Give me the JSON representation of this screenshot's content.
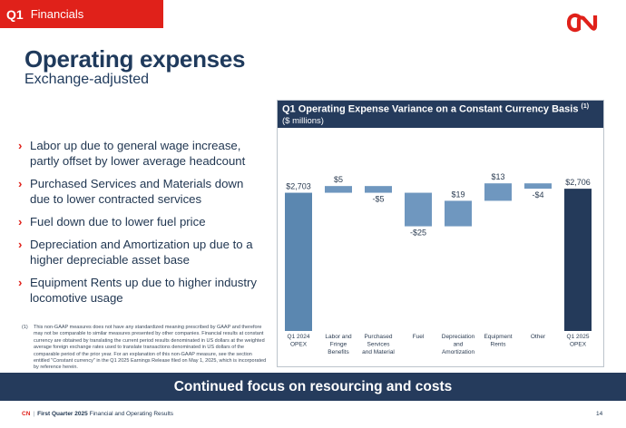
{
  "header": {
    "quarter": "Q1",
    "section": "Financials"
  },
  "title": "Operating expenses",
  "subtitle": "Exchange-adjusted",
  "bullets": [
    "Labor up due to general wage increase, partly offset by lower average headcount",
    "Purchased Services and Materials down due to lower contracted services",
    "Fuel down due to lower fuel price",
    "Depreciation and Amortization up due to a higher depreciable asset base",
    "Equipment Rents up due to higher industry locomotive usage"
  ],
  "footnote": {
    "num": "(1)",
    "text": "This non-GAAP measures does not have any standardized meaning prescribed by GAAP and therefore may not be comparable to similar measures presented by other companies. Financial results at constant currency are obtained by translating the current period results denominated in US dollars at the weighted average foreign exchange rates used to translate transactions denominated in US dollars of the comparable period of the prior year. For an explanation of this non-GAAP measure, see the section entitled \"Constant currency\" in the Q1 2025 Earnings Release filed on May 1, 2025, which is incorporated by reference herein."
  },
  "chart_title": "Q1 Operating Expense Variance on a Constant Currency Basis",
  "chart_title_sup": "(1)",
  "chart_subtitle": "($ millions)",
  "banner": "Continued focus on resourcing and costs",
  "footer": {
    "brand": "CN",
    "sep": "|",
    "bold": "First Quarter 2025",
    "rest": "Financial and Operating Results",
    "page": "14"
  },
  "colors": {
    "red": "#e0211a",
    "navy": "#253b5c",
    "total_start": "#5b87b0",
    "change": "#6f97bf",
    "total_end": "#243a5a"
  },
  "chart_data": {
    "type": "waterfall",
    "categories": [
      "Q1 2024 OPEX",
      "Labor and Fringe Benefits",
      "Purchased Services and Material",
      "Fuel",
      "Depreciation and Amortization",
      "Equipment Rents",
      "Other",
      "Q1 2025 OPEX"
    ],
    "category_lines": [
      [
        "Q1 2024",
        "OPEX"
      ],
      [
        "Labor and",
        "Fringe",
        "Benefits"
      ],
      [
        "Purchased",
        "Services",
        "and Material"
      ],
      [
        "Fuel"
      ],
      [
        "Depreciation",
        "and",
        "Amortization"
      ],
      [
        "Equipment",
        "Rents"
      ],
      [
        "Other"
      ],
      [
        "Q1 2025",
        "OPEX"
      ]
    ],
    "values": [
      2703,
      5,
      -5,
      -25,
      19,
      13,
      -4,
      2706
    ],
    "kinds": [
      "total",
      "delta",
      "delta",
      "delta",
      "delta",
      "delta",
      "delta",
      "total"
    ],
    "labels": [
      "$2,703",
      "$5",
      "-$5",
      "-$25",
      "$19",
      "$13",
      "-$4",
      "$2,706"
    ],
    "ylim": [
      2600,
      2725
    ]
  }
}
